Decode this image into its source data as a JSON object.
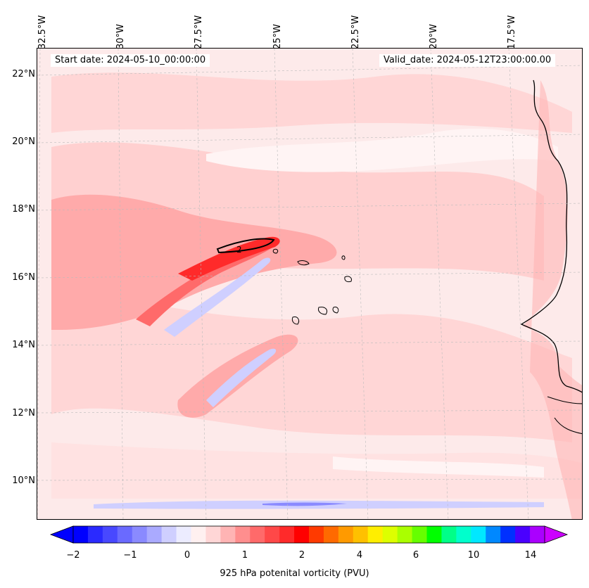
{
  "map": {
    "start_date": "Start date: 2024-05-10_00:00:00",
    "valid_date": "Valid_date: 2024-05-12T23:00:00.00",
    "lon_labels": [
      "32.5°W",
      "30°W",
      "27.5°W",
      "25°W",
      "22.5°W",
      "20°W",
      "17.5°W"
    ],
    "lat_labels": [
      "22°N",
      "20°N",
      "18°N",
      "16°N",
      "14°N",
      "12°N",
      "10°N"
    ],
    "contour_label": "2"
  },
  "colorbar": {
    "title": "925 hPa potenital vorticity (PVU)",
    "ticks": [
      "−2",
      "−1",
      "0",
      "1",
      "2",
      "4",
      "6",
      "10",
      "14"
    ],
    "colors": [
      "#0000ff",
      "#2a2aff",
      "#4848ff",
      "#6a6aff",
      "#8a8aff",
      "#aaaaff",
      "#cfcfff",
      "#ececff",
      "#fff0f0",
      "#ffd6d6",
      "#ffb4b4",
      "#ff8e8e",
      "#ff6a6a",
      "#ff4848",
      "#ff2a2a",
      "#ff0000",
      "#ff3a00",
      "#ff6a00",
      "#ff9a00",
      "#ffc000",
      "#ffee00",
      "#ddff00",
      "#aaff00",
      "#66ff00",
      "#00ff00",
      "#00ff88",
      "#00ffcc",
      "#00e8ff",
      "#0088ff",
      "#0030ff",
      "#4a00ff",
      "#aa00ff"
    ]
  }
}
